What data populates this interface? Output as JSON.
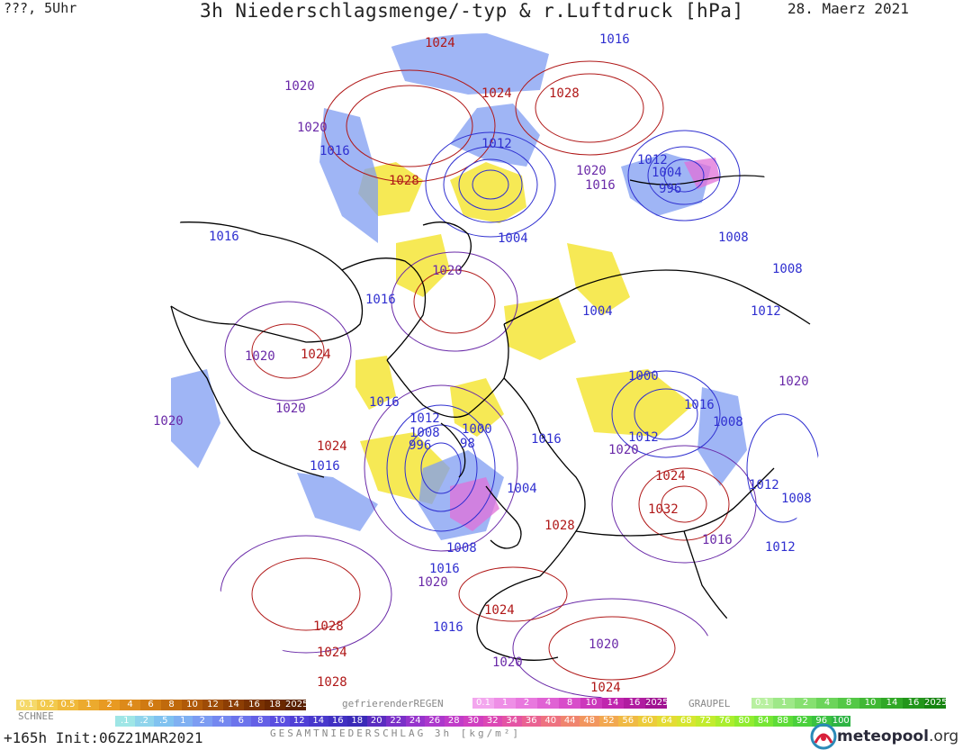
{
  "header": {
    "left": "???, 5Uhr",
    "title": "3h Niederschlagsmenge/-typ & r.Luftdruck [hPa]",
    "date": "28. Maerz 2021"
  },
  "map": {
    "colors": {
      "high_isobar": "#b01818",
      "low_isobar": "#2f2fd0",
      "mid_isobar": "#6a2aa8",
      "coast": "#000000",
      "rain_yellow": "#f3e21c",
      "snow_blue": "#7f9cf2",
      "freezing_pink": "#e070d8"
    },
    "pressure_labels": [
      {
        "text": "1024",
        "kind": "high"
      },
      {
        "text": "1016",
        "kind": "low"
      },
      {
        "text": "1020",
        "kind": "mid"
      },
      {
        "text": "1024",
        "kind": "high"
      },
      {
        "text": "1028",
        "kind": "high"
      },
      {
        "text": "1020",
        "kind": "mid"
      },
      {
        "text": "1016",
        "kind": "low"
      },
      {
        "text": "1012",
        "kind": "low"
      },
      {
        "text": "1028",
        "kind": "high"
      },
      {
        "text": "1020",
        "kind": "mid"
      },
      {
        "text": "1016",
        "kind": "mid"
      },
      {
        "text": "1012",
        "kind": "low"
      },
      {
        "text": "1004",
        "kind": "low"
      },
      {
        "text": "996",
        "kind": "low"
      },
      {
        "text": "1004",
        "kind": "low"
      },
      {
        "text": "1016",
        "kind": "low"
      },
      {
        "text": "1008",
        "kind": "low"
      },
      {
        "text": "1020",
        "kind": "mid"
      },
      {
        "text": "1008",
        "kind": "low"
      },
      {
        "text": "1016",
        "kind": "low"
      },
      {
        "text": "1012",
        "kind": "low"
      },
      {
        "text": "1004",
        "kind": "low"
      },
      {
        "text": "1020",
        "kind": "mid"
      },
      {
        "text": "1024",
        "kind": "high"
      },
      {
        "text": "1000",
        "kind": "low"
      },
      {
        "text": "1020",
        "kind": "mid"
      },
      {
        "text": "1016",
        "kind": "low"
      },
      {
        "text": "1020",
        "kind": "mid"
      },
      {
        "text": "1016",
        "kind": "low"
      },
      {
        "text": "1020",
        "kind": "mid"
      },
      {
        "text": "1012",
        "kind": "low"
      },
      {
        "text": "1000",
        "kind": "low"
      },
      {
        "text": "1008",
        "kind": "low"
      },
      {
        "text": "1008",
        "kind": "low"
      },
      {
        "text": "996",
        "kind": "low"
      },
      {
        "text": "98",
        "kind": "low"
      },
      {
        "text": "1016",
        "kind": "low"
      },
      {
        "text": "1012",
        "kind": "low"
      },
      {
        "text": "1020",
        "kind": "mid"
      },
      {
        "text": "1024",
        "kind": "high"
      },
      {
        "text": "1016",
        "kind": "low"
      },
      {
        "text": "1024",
        "kind": "high"
      },
      {
        "text": "1004",
        "kind": "low"
      },
      {
        "text": "1012",
        "kind": "low"
      },
      {
        "text": "1008",
        "kind": "low"
      },
      {
        "text": "1032",
        "kind": "high"
      },
      {
        "text": "1028",
        "kind": "high"
      },
      {
        "text": "1008",
        "kind": "low"
      },
      {
        "text": "1016",
        "kind": "mid"
      },
      {
        "text": "1012",
        "kind": "low"
      },
      {
        "text": "1016",
        "kind": "low"
      },
      {
        "text": "1020",
        "kind": "mid"
      },
      {
        "text": "1028",
        "kind": "high"
      },
      {
        "text": "1024",
        "kind": "high"
      },
      {
        "text": "1016",
        "kind": "low"
      },
      {
        "text": "1024",
        "kind": "high"
      },
      {
        "text": "1020",
        "kind": "mid"
      },
      {
        "text": "1028",
        "kind": "high"
      },
      {
        "text": "1024",
        "kind": "high"
      },
      {
        "text": "1020",
        "kind": "mid"
      }
    ]
  },
  "legend": {
    "snow": {
      "title": "SCHNEE",
      "labels": [
        "0.1",
        "0.2",
        "0.5",
        "1",
        "2",
        "4",
        "6",
        "8",
        "10",
        "12",
        "14",
        "16",
        "18",
        "2025+"
      ],
      "colors": [
        "#f5d96a",
        "#f2c94c",
        "#f0b93a",
        "#ecaa2e",
        "#e89a22",
        "#dd8a1a",
        "#d07a12",
        "#c06a0c",
        "#b05a08",
        "#9e4c06",
        "#8c3e04",
        "#7a3202",
        "#6a2800",
        "#5a2000"
      ]
    },
    "rain": {
      "title": "gefrierenderREGEN",
      "labels": [
        "0.1",
        "1",
        "2",
        "4",
        "8",
        "10",
        "14",
        "16",
        "2025+"
      ],
      "colors": [
        "#f3a6ee",
        "#ee8ee6",
        "#e878de",
        "#e062d4",
        "#d84cca",
        "#cc38bc",
        "#c026ae",
        "#b01ca0",
        "#a01292"
      ]
    },
    "graupel": {
      "title": "GRAUPEL",
      "labels": [
        "0.1",
        "1",
        "2",
        "4",
        "8",
        "10",
        "14",
        "16",
        "2025+"
      ],
      "colors": [
        "#b8f0a0",
        "#9ee888",
        "#86e070",
        "#6cd45a",
        "#54c846",
        "#40b834",
        "#30a826",
        "#22961a",
        "#168410"
      ]
    },
    "total": {
      "title": "GESAMTNIEDERSCHLAG 3h [kg/m²]",
      "labels": [
        ".1",
        ".2",
        ".5",
        "1",
        "2",
        "4",
        "6",
        "8",
        "10",
        "12",
        "14",
        "16",
        "18",
        "20",
        "22",
        "24",
        "26",
        "28",
        "30",
        "32",
        "34",
        "36",
        "40",
        "44",
        "48",
        "52",
        "56",
        "60",
        "64",
        "68",
        "72",
        "76",
        "80",
        "84",
        "88",
        "92",
        "96",
        "100"
      ],
      "colors": [
        "#9fe6e6",
        "#8fd4ec",
        "#80c2f0",
        "#7fb0f2",
        "#7c9cf2",
        "#7488f0",
        "#6c74ec",
        "#6460e6",
        "#5a4ee0",
        "#5040d6",
        "#4838cc",
        "#4030c2",
        "#3a2ab8",
        "#5a2cc0",
        "#7a30c8",
        "#9634cc",
        "#ac38cc",
        "#c03cc8",
        "#d040c0",
        "#dc48b4",
        "#e454a4",
        "#ea6292",
        "#ee7280",
        "#f0846e",
        "#f2965e",
        "#f2a850",
        "#f0ba44",
        "#eccc3a",
        "#e4dc34",
        "#d6e630",
        "#c2ec2e",
        "#aaee2e",
        "#90ec30",
        "#76e634",
        "#5edc38",
        "#4ad03c",
        "#3ac240",
        "#2eb444"
      ]
    }
  },
  "footer": {
    "run": "+165h Init:06Z21MAR2021",
    "logo_name": "meteopool",
    "logo_tld": ".org"
  }
}
